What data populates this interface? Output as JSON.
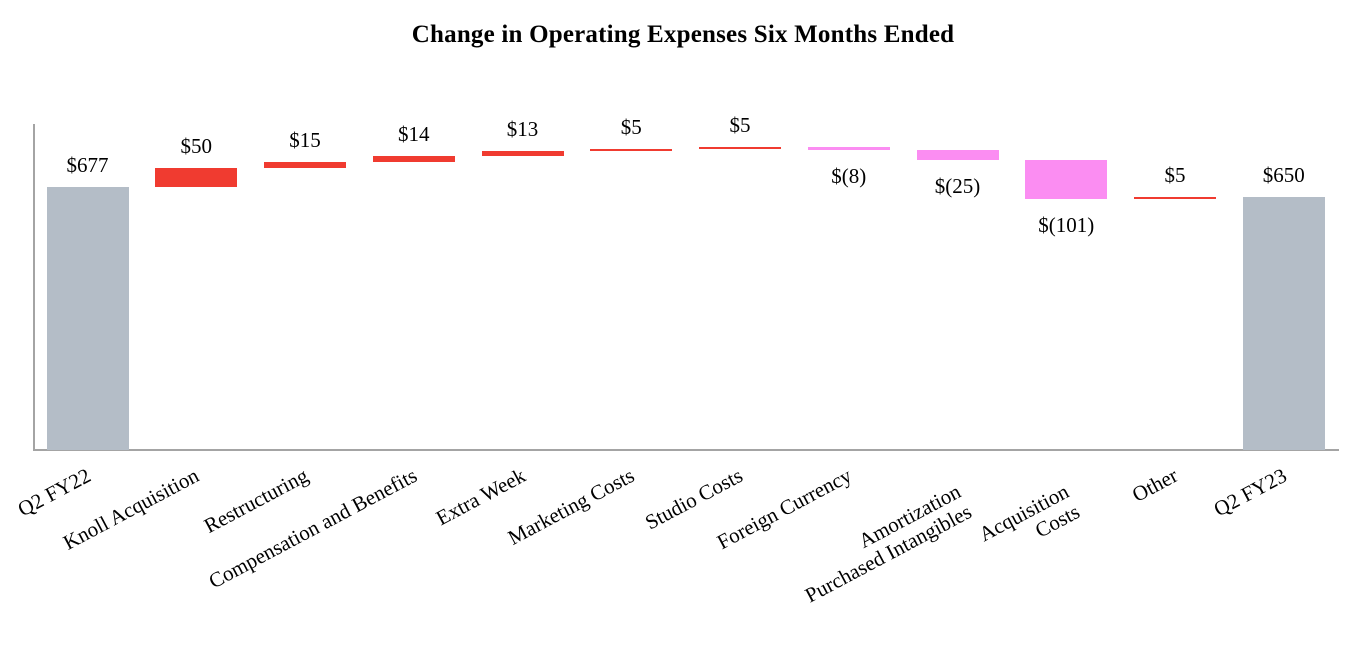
{
  "chart_data": {
    "type": "bar",
    "subtype": "waterfall",
    "title": "Change in Operating Expenses Six Months Ended",
    "xlabel": "",
    "ylabel": "",
    "axis": {
      "ylim": [
        0,
        845
      ],
      "gridlines": false,
      "y_tick_labels_visible": false,
      "axis_color": "#a4a4a4"
    },
    "colors": {
      "total": "#b4bdc7",
      "increase": "#f03b30",
      "decrease": "#fb8df2"
    },
    "bars": [
      {
        "label": "Q2 FY22",
        "label_display": "Q2 FY22",
        "value": 677,
        "kind": "total",
        "value_label": "$677"
      },
      {
        "label": "Knoll Acquisition",
        "label_display": "Knoll Acquisition",
        "value": 50,
        "kind": "increase",
        "value_label": "$50"
      },
      {
        "label": "Restructuring",
        "label_display": "Restructuring",
        "value": 15,
        "kind": "increase",
        "value_label": "$15"
      },
      {
        "label": "Compensation and Benefits",
        "label_display": "Compensation and Benefits",
        "value": 14,
        "kind": "increase",
        "value_label": "$14"
      },
      {
        "label": "Extra Week",
        "label_display": "Extra Week",
        "value": 13,
        "kind": "increase",
        "value_label": "$13"
      },
      {
        "label": "Marketing Costs",
        "label_display": "Marketing Costs",
        "value": 5,
        "kind": "increase",
        "value_label": "$5"
      },
      {
        "label": "Studio Costs",
        "label_display": "Studio Costs",
        "value": 5,
        "kind": "increase",
        "value_label": "$5"
      },
      {
        "label": "Foreign Currency",
        "label_display": "Foreign Currency",
        "value": -8,
        "kind": "decrease",
        "value_label": "$(8)"
      },
      {
        "label": "Amortization Purchased Intangibles",
        "label_display": "Amortization\nPurchased Intangibles",
        "value": -25,
        "kind": "decrease",
        "value_label": "$(25)"
      },
      {
        "label": "Acquisition Costs",
        "label_display": "Acquisition\nCosts",
        "value": -101,
        "kind": "decrease",
        "value_label": "$(101)"
      },
      {
        "label": "Other",
        "label_display": "Other",
        "value": 5,
        "kind": "increase",
        "value_label": "$5"
      },
      {
        "label": "Q2 FY23",
        "label_display": "Q2 FY23",
        "value": 650,
        "kind": "total",
        "value_label": "$650"
      }
    ]
  }
}
